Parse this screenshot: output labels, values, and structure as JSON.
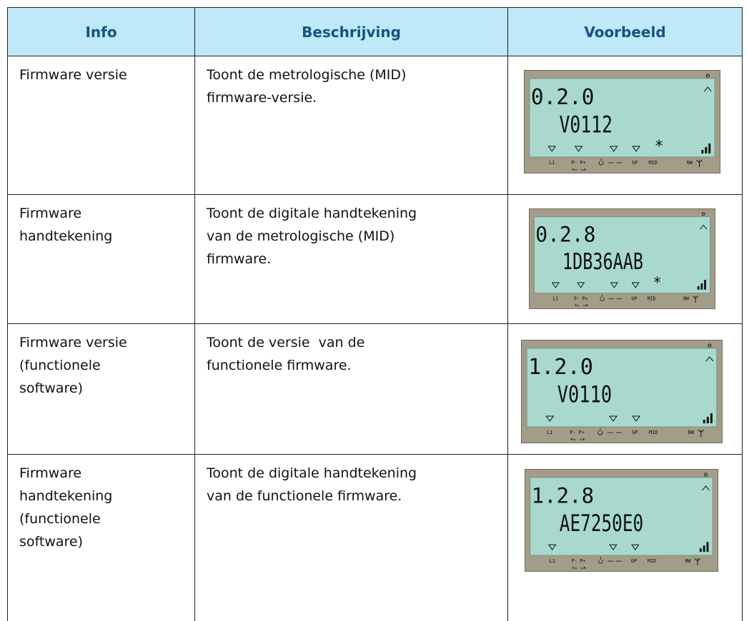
{
  "header": {
    "columns": [
      "Info",
      "Beschrijving",
      "Voorbeeld"
    ]
  },
  "display_labels": [
    "L1",
    "P-",
    "P+",
    "GP",
    "MID",
    "NW"
  ],
  "table": {
    "rows": [
      {
        "info": [
          "Firmware versie"
        ],
        "description": [
          "Toont de metrologische (MID)",
          "firmware-versie."
        ],
        "example": {
          "code": "0.2.0",
          "value": "V0112",
          "star": true
        }
      },
      {
        "info": [
          "Firmware",
          "handtekening"
        ],
        "description": [
          "Toont de digitale handtekening",
          "van de metrologische (MID)",
          "firmware."
        ],
        "example": {
          "code": "0.2.8",
          "value": "1DB36AAB",
          "star": true
        }
      },
      {
        "info": [
          "Firmware versie",
          "(functionele",
          "software)"
        ],
        "description": [
          "Toont de versie  van de",
          "functionele firmware."
        ],
        "example": {
          "code": "1.2.0",
          "value": "V0110",
          "star": false
        }
      },
      {
        "info": [
          "Firmware",
          "handtekening",
          "(functionele",
          "software)"
        ],
        "description": [
          "Toont de digitale handtekening",
          "van de functionele firmware."
        ],
        "example": {
          "code": "1.2.8",
          "value": "AE7250E0",
          "star": false
        }
      }
    ]
  }
}
